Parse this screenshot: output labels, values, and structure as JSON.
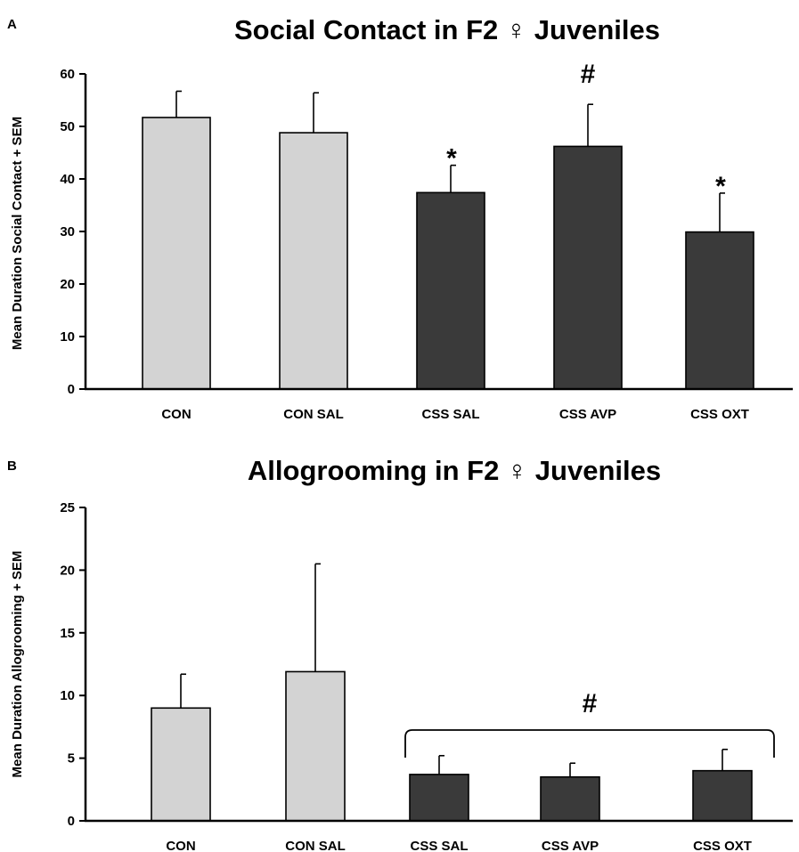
{
  "chart_data": [
    {
      "panel": "A",
      "type": "bar",
      "title": "Social Contact in F2 ♀ Juveniles",
      "xlabel": "",
      "ylabel": "Mean Duration Social Contact + SEM",
      "ylim": [
        0,
        60
      ],
      "yticks": [
        0,
        10,
        20,
        30,
        40,
        50,
        60
      ],
      "categories": [
        "CON",
        "CON SAL",
        "CSS SAL",
        "CSS AVP",
        "CSS OXT"
      ],
      "values": [
        51.7,
        48.8,
        37.4,
        46.2,
        29.9
      ],
      "errors": [
        5.0,
        7.6,
        5.2,
        8.0,
        7.4
      ],
      "bar_colors": [
        "#d3d3d3",
        "#d3d3d3",
        "#3a3a3a",
        "#3a3a3a",
        "#3a3a3a"
      ],
      "annotations": [
        {
          "category_index": 2,
          "text": "*"
        },
        {
          "category_index": 3,
          "text": "#"
        },
        {
          "category_index": 4,
          "text": "*"
        }
      ],
      "grid": false
    },
    {
      "panel": "B",
      "type": "bar",
      "title": "Allogrooming in F2 ♀ Juveniles",
      "xlabel": "",
      "ylabel": "Mean Duration Allogrooming + SEM",
      "ylim": [
        0,
        25
      ],
      "yticks": [
        0,
        5,
        10,
        15,
        20,
        25
      ],
      "categories": [
        "CON",
        "CON SAL",
        "CSS SAL",
        "CSS AVP",
        "CSS OXT"
      ],
      "values": [
        9.0,
        11.9,
        3.7,
        3.5,
        4.0
      ],
      "errors": [
        2.7,
        8.6,
        1.5,
        1.1,
        1.7
      ],
      "bar_colors": [
        "#d3d3d3",
        "#d3d3d3",
        "#3a3a3a",
        "#3a3a3a",
        "#3a3a3a"
      ],
      "group_annotation": {
        "from_index": 2,
        "to_index": 4,
        "text": "#"
      },
      "grid": false
    }
  ]
}
